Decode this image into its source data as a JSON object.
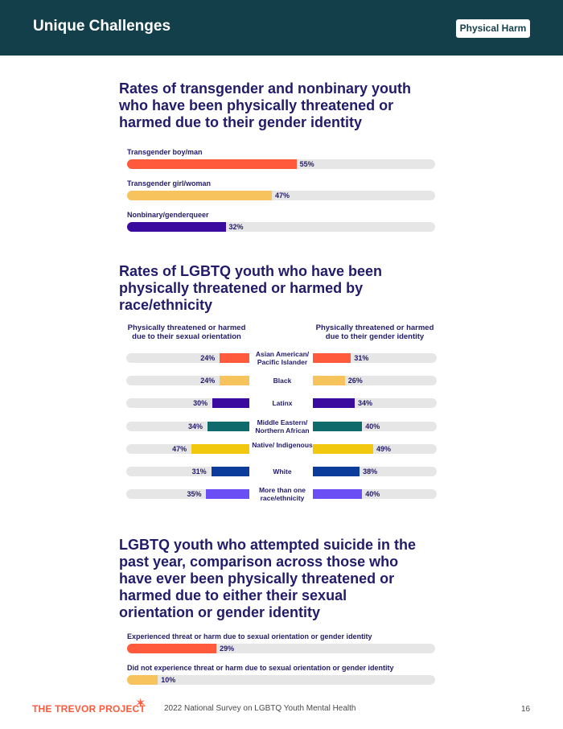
{
  "header": {
    "title": "Unique Challenges",
    "tag": "Physical Harm"
  },
  "colors": {
    "orange": "#ff5a3c",
    "yellow": "#f7c35c",
    "purple": "#3b0a9e",
    "teal": "#0f6b6b",
    "gold": "#f2c80f",
    "blue": "#0b3c9c",
    "violet": "#6b4ff5",
    "track": "#e6e6e6"
  },
  "chart_data": [
    {
      "type": "bar",
      "title": "Rates of transgender and nonbinary youth who have been physically threatened or harmed due to their gender identity",
      "categories": [
        "Transgender boy/man",
        "Transgender girl/woman",
        "Nonbinary/genderqueer"
      ],
      "values": [
        55,
        47,
        32
      ],
      "value_labels": [
        "55%",
        "47%",
        "32%"
      ],
      "colors": [
        "#ff5a3c",
        "#f7c35c",
        "#3b0a9e"
      ],
      "xlim": [
        0,
        100
      ]
    },
    {
      "type": "bar",
      "title": "Rates of LGBTQ youth who have been physically threatened or harmed by race/ethnicity",
      "categories": [
        "Asian American/ Pacific Islander",
        "Black",
        "Latinx",
        "Middle Eastern/ Northern African",
        "Native/ Indigenous",
        "White",
        "More than one race/ethnicity"
      ],
      "series": [
        {
          "name": "Physically threatened or harmed due to their sexual orientation",
          "values": [
            24,
            24,
            30,
            34,
            47,
            31,
            35
          ],
          "labels": [
            "24%",
            "24%",
            "30%",
            "34%",
            "47%",
            "31%",
            "35%"
          ]
        },
        {
          "name": "Physically threatened or harmed due to their gender identity",
          "values": [
            31,
            26,
            34,
            40,
            49,
            38,
            40
          ],
          "labels": [
            "31%",
            "26%",
            "34%",
            "40%",
            "49%",
            "38%",
            "40%"
          ]
        }
      ],
      "colors": [
        "#ff5a3c",
        "#f7c35c",
        "#3b0a9e",
        "#0f6b6b",
        "#f2c80f",
        "#0b3c9c",
        "#6b4ff5"
      ],
      "xlim": [
        0,
        100
      ]
    },
    {
      "type": "bar",
      "title": "LGBTQ youth who attempted suicide in the past year, comparison across those who have ever been physically threatened or harmed due to either their sexual orientation or gender identity",
      "categories": [
        "Experienced threat or harm due to sexual orientation or gender identity",
        "Did not experience threat or harm due to sexual orientation or gender identity"
      ],
      "values": [
        29,
        10
      ],
      "value_labels": [
        "29%",
        "10%"
      ],
      "colors": [
        "#ff5a3c",
        "#f7c35c"
      ],
      "xlim": [
        0,
        100
      ]
    }
  ],
  "footer": {
    "logo": "THE TREVOR PROJECT",
    "text": "2022 National Survey on LGBTQ Youth Mental Health",
    "page": "16"
  }
}
